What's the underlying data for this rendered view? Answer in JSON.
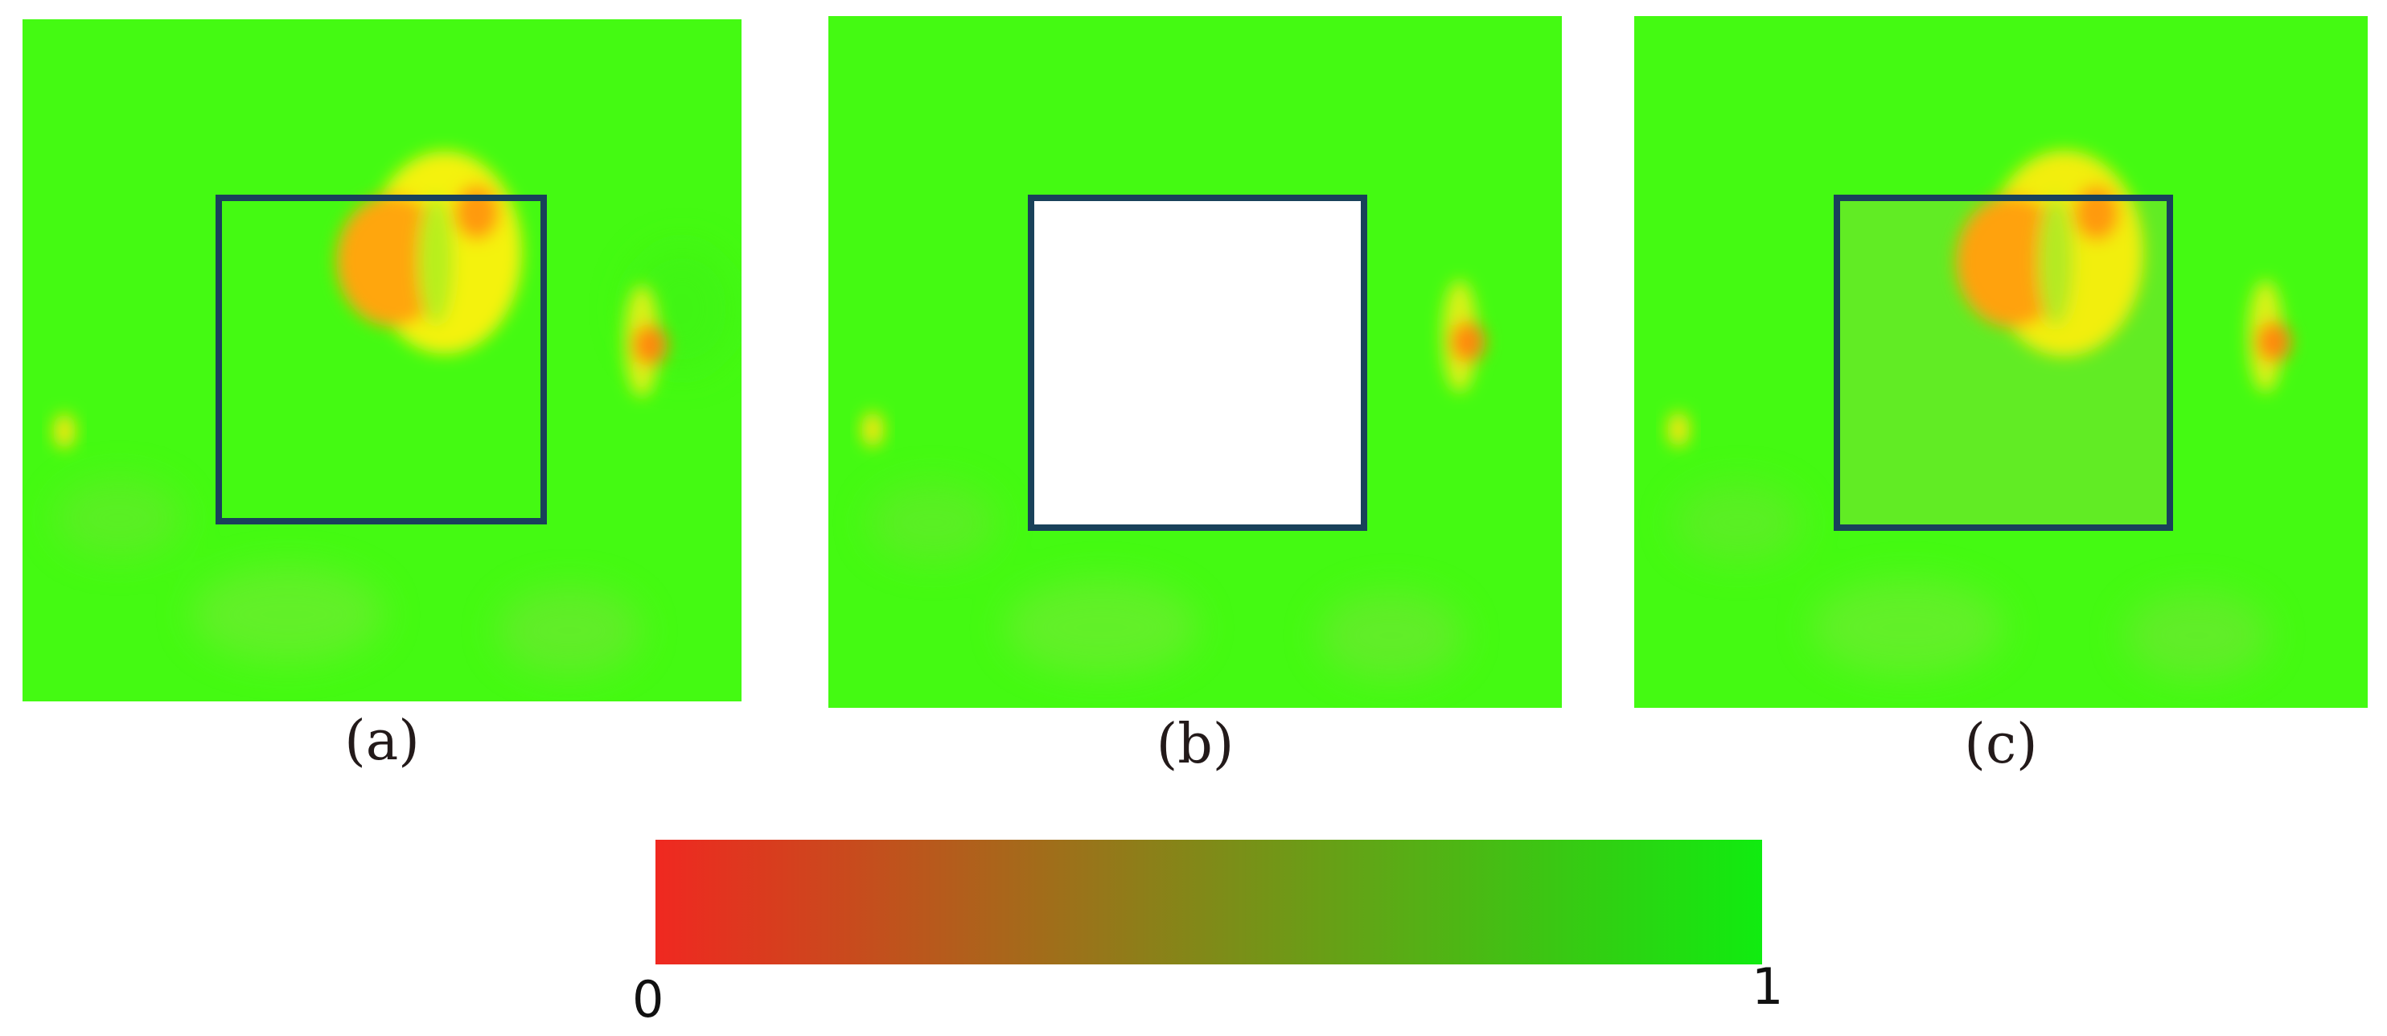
{
  "panels": [
    {
      "id": "a",
      "caption": "(a)"
    },
    {
      "id": "b",
      "caption": "(b)"
    },
    {
      "id": "c",
      "caption": "(c)"
    }
  ],
  "colorbar": {
    "min_label": "0",
    "max_label": "1",
    "low_color": "#f02820",
    "high_color": "#10ec10"
  },
  "colors": {
    "background_green": "#44fa12",
    "box_outline": "#19415a",
    "hot_orange": "#ff8a0a",
    "warm_yellow": "#f2f00a",
    "masked_fill": "#ffffff"
  }
}
